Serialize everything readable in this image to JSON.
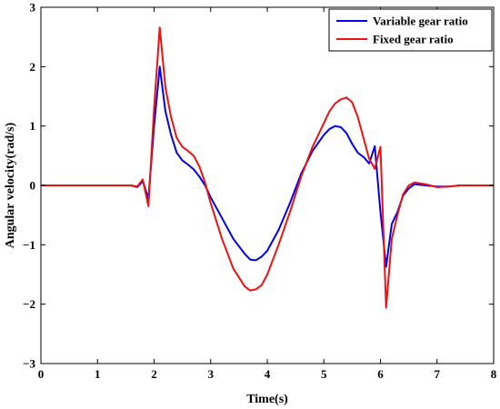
{
  "chart_data": {
    "type": "line",
    "xlabel": "Time(s)",
    "ylabel": "Angular velocity(rad/s)",
    "xlim": [
      0,
      8
    ],
    "ylim": [
      -3,
      3
    ],
    "x_ticks": [
      "0",
      "1",
      "2",
      "3",
      "4",
      "5",
      "6",
      "7",
      "8"
    ],
    "y_ticks": [
      "3",
      "2",
      "1",
      "0",
      "−1",
      "−2",
      "−3"
    ],
    "grid": false,
    "legend_position": "top-right",
    "series": [
      {
        "name": "Variable gear ratio",
        "color": "#0000ee",
        "x": [
          0,
          1.6,
          1.7,
          1.8,
          1.9,
          2.0,
          2.1,
          2.2,
          2.3,
          2.4,
          2.5,
          2.6,
          2.7,
          2.8,
          2.9,
          3.0,
          3.2,
          3.4,
          3.6,
          3.7,
          3.8,
          3.9,
          4.0,
          4.2,
          4.4,
          4.6,
          4.8,
          5.0,
          5.1,
          5.2,
          5.3,
          5.4,
          5.5,
          5.6,
          5.7,
          5.8,
          5.9,
          6.0,
          6.1,
          6.2,
          6.3,
          6.4,
          6.5,
          6.6,
          6.8,
          7.0,
          7.2,
          7.4,
          7.6,
          8.0
        ],
        "y": [
          0,
          0,
          -0.03,
          0.07,
          -0.22,
          1.0,
          2.0,
          1.25,
          0.85,
          0.55,
          0.42,
          0.35,
          0.27,
          0.15,
          0.0,
          -0.2,
          -0.55,
          -0.9,
          -1.15,
          -1.25,
          -1.26,
          -1.2,
          -1.1,
          -0.75,
          -0.3,
          0.2,
          0.58,
          0.85,
          0.95,
          1.0,
          0.98,
          0.88,
          0.7,
          0.55,
          0.48,
          0.37,
          0.66,
          -0.45,
          -1.37,
          -0.65,
          -0.45,
          -0.17,
          -0.05,
          0.02,
          0.0,
          -0.02,
          -0.02,
          0.0,
          0.0,
          0.0
        ]
      },
      {
        "name": "Fixed gear ratio",
        "color": "#ee1111",
        "x": [
          0,
          1.6,
          1.7,
          1.8,
          1.9,
          2.0,
          2.1,
          2.2,
          2.3,
          2.4,
          2.5,
          2.6,
          2.7,
          2.8,
          2.9,
          3.0,
          3.2,
          3.4,
          3.6,
          3.7,
          3.8,
          3.9,
          4.0,
          4.2,
          4.4,
          4.6,
          4.8,
          5.0,
          5.1,
          5.2,
          5.3,
          5.4,
          5.5,
          5.6,
          5.7,
          5.8,
          5.9,
          6.0,
          6.1,
          6.2,
          6.3,
          6.4,
          6.5,
          6.6,
          6.8,
          7.0,
          7.2,
          7.4,
          7.6,
          8.0
        ],
        "y": [
          0,
          0,
          -0.02,
          0.1,
          -0.35,
          1.3,
          2.66,
          1.65,
          1.15,
          0.8,
          0.65,
          0.58,
          0.5,
          0.32,
          0.05,
          -0.3,
          -0.9,
          -1.4,
          -1.7,
          -1.77,
          -1.75,
          -1.68,
          -1.5,
          -1.0,
          -0.45,
          0.15,
          0.65,
          1.05,
          1.25,
          1.38,
          1.45,
          1.48,
          1.4,
          1.15,
          0.8,
          0.45,
          0.28,
          0.65,
          -2.06,
          -0.9,
          -0.5,
          -0.15,
          0.0,
          0.05,
          0.02,
          -0.03,
          -0.02,
          0.0,
          0.0,
          0.0
        ]
      }
    ]
  }
}
